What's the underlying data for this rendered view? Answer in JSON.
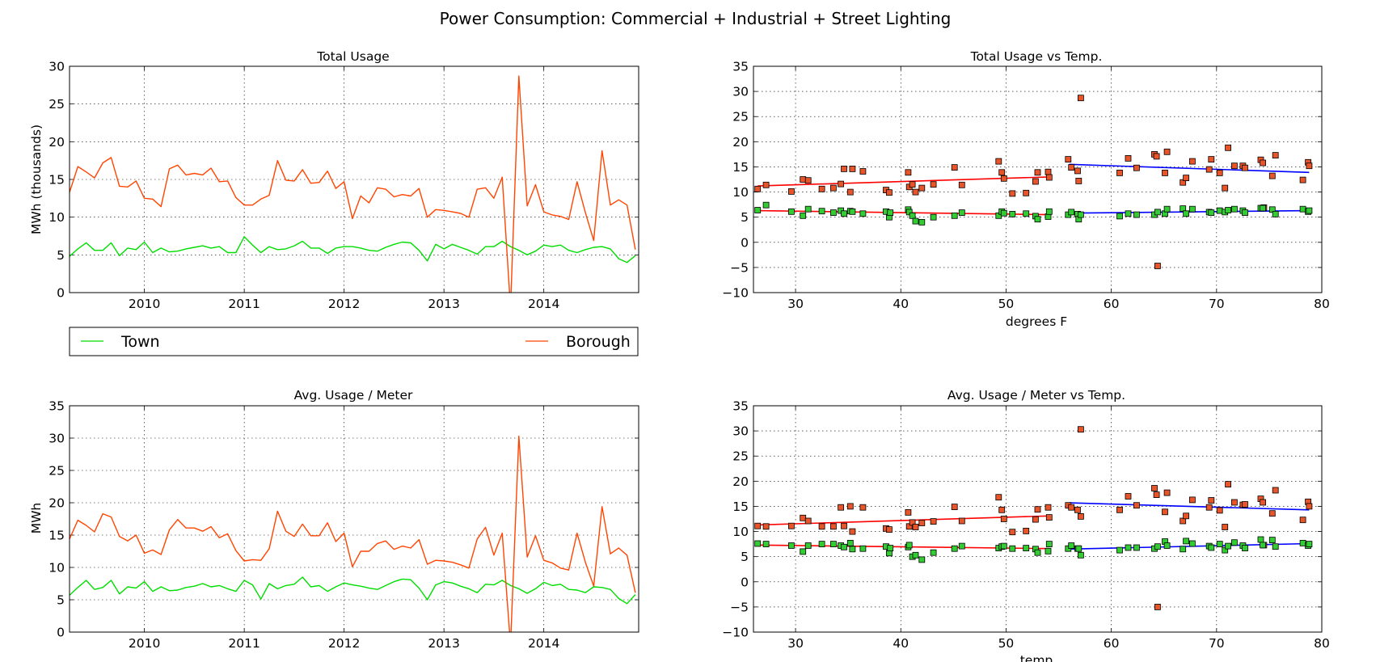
{
  "figure_title": "Power Consumption: Commercial + Industrial + Street Lighting",
  "colors": {
    "town": "#00dd00",
    "borough": "#ff4500",
    "town_marker": "#33cc33",
    "borough_marker": "#e8552a",
    "fit_low": "#ff0000",
    "fit_high": "#0000ff",
    "grid": "#000000"
  },
  "legend": {
    "town": "Town",
    "borough": "Borough",
    "placement": "below-top-left-panel"
  },
  "chart_data": [
    {
      "id": "ts1",
      "type": "line",
      "title": "Total Usage",
      "xlabel": "",
      "ylabel": "MWh (thousands)",
      "xlim": [
        2009.25,
        2014.95
      ],
      "ylim": [
        0,
        30
      ],
      "xticks": [
        2010,
        2011,
        2012,
        2013,
        2014
      ],
      "xtick_labels": [
        "2010",
        "2011",
        "2012",
        "2013",
        "2014"
      ],
      "yticks": [
        0,
        5,
        10,
        15,
        20,
        25,
        30
      ],
      "ytick_labels": [
        "0",
        "5",
        "10",
        "15",
        "20",
        "25",
        "30"
      ],
      "grid": true,
      "series": [
        {
          "name": "Town",
          "x_start": 2009.25,
          "x_step": 0.0833333,
          "values": [
            4.8,
            5.8,
            6.6,
            5.6,
            5.6,
            6.6,
            4.9,
            5.9,
            5.7,
            6.7,
            5.3,
            5.9,
            5.4,
            5.5,
            5.8,
            6.0,
            6.2,
            5.9,
            6.1,
            5.3,
            5.3,
            7.4,
            6.3,
            5.3,
            6.1,
            5.7,
            5.8,
            6.2,
            6.8,
            5.9,
            5.9,
            5.2,
            5.9,
            6.1,
            6.1,
            5.9,
            5.6,
            5.5,
            6.0,
            6.4,
            6.7,
            6.6,
            5.6,
            4.2,
            6.4,
            5.8,
            6.4,
            6.0,
            5.6,
            5.1,
            6.1,
            6.1,
            6.8,
            6.1,
            5.6,
            5.0,
            5.5,
            6.3,
            6.1,
            6.3,
            5.6,
            5.3,
            5.7,
            6.0,
            6.1,
            5.8,
            4.5,
            4.0,
            4.9
          ]
        },
        {
          "name": "Borough",
          "x_start": 2009.25,
          "x_step": 0.0833333,
          "values": [
            13.3,
            16.7,
            16.0,
            15.2,
            17.2,
            17.9,
            14.1,
            14.0,
            14.8,
            12.5,
            12.4,
            11.4,
            16.4,
            16.9,
            15.6,
            15.8,
            15.6,
            16.5,
            14.7,
            14.8,
            12.6,
            11.6,
            11.6,
            12.4,
            12.9,
            17.5,
            14.9,
            14.8,
            16.3,
            14.5,
            14.6,
            16.1,
            13.8,
            14.7,
            9.8,
            12.8,
            11.9,
            13.9,
            13.7,
            12.7,
            13.0,
            12.8,
            13.8,
            10.0,
            11.0,
            10.9,
            10.7,
            10.5,
            10.0,
            13.7,
            13.9,
            12.5,
            15.3,
            -2.0,
            28.7,
            11.5,
            14.3,
            10.7,
            10.3,
            10.1,
            9.7,
            14.7,
            10.6,
            6.9,
            18.8,
            11.6,
            12.3,
            11.6,
            5.7
          ]
        }
      ]
    },
    {
      "id": "ts2",
      "type": "line",
      "title": "Avg. Usage / Meter",
      "xlabel": "",
      "ylabel": "MWh",
      "xlim": [
        2009.25,
        2014.95
      ],
      "ylim": [
        0,
        35
      ],
      "xticks": [
        2010,
        2011,
        2012,
        2013,
        2014
      ],
      "xtick_labels": [
        "2010",
        "2011",
        "2012",
        "2013",
        "2014"
      ],
      "yticks": [
        0,
        5,
        10,
        15,
        20,
        25,
        30,
        35
      ],
      "ytick_labels": [
        "0",
        "5",
        "10",
        "15",
        "20",
        "25",
        "30",
        "35"
      ],
      "grid": true,
      "series": [
        {
          "name": "Town",
          "x_start": 2009.25,
          "x_step": 0.0833333,
          "values": [
            5.7,
            6.9,
            8.0,
            6.6,
            6.9,
            8.0,
            5.9,
            7.0,
            6.8,
            7.8,
            6.3,
            7.0,
            6.4,
            6.5,
            6.9,
            7.1,
            7.5,
            7.0,
            7.2,
            6.7,
            6.3,
            8.0,
            7.3,
            5.1,
            7.5,
            6.7,
            7.2,
            7.4,
            8.5,
            7.0,
            7.2,
            6.3,
            7.0,
            7.6,
            7.3,
            7.1,
            6.8,
            6.6,
            7.2,
            7.8,
            8.2,
            8.1,
            6.8,
            5.0,
            7.3,
            7.8,
            7.6,
            7.1,
            6.7,
            6.1,
            7.4,
            7.3,
            8.0,
            7.2,
            6.7,
            6.0,
            6.7,
            7.7,
            7.2,
            7.4,
            6.6,
            6.5,
            6.1,
            7.0,
            6.9,
            6.6,
            5.2,
            4.4,
            5.8
          ]
        },
        {
          "name": "Borough",
          "x_start": 2009.25,
          "x_step": 0.0833333,
          "values": [
            14.4,
            17.3,
            16.5,
            15.5,
            18.3,
            17.8,
            14.8,
            14.1,
            15.0,
            12.2,
            12.7,
            12.0,
            15.8,
            17.4,
            16.1,
            16.1,
            15.6,
            16.3,
            14.6,
            15.2,
            12.6,
            11.0,
            11.2,
            11.1,
            12.9,
            18.7,
            15.6,
            14.8,
            16.7,
            14.9,
            14.9,
            16.9,
            14.0,
            15.3,
            10.1,
            12.5,
            12.5,
            13.7,
            14.1,
            12.8,
            13.3,
            13.0,
            14.3,
            10.5,
            11.1,
            11.0,
            10.8,
            10.4,
            9.9,
            14.4,
            16.2,
            11.9,
            15.3,
            -2.0,
            30.3,
            11.6,
            14.9,
            11.1,
            10.7,
            9.9,
            9.6,
            15.3,
            10.8,
            7.1,
            19.4,
            12.1,
            13.0,
            11.9,
            6.1
          ]
        }
      ]
    },
    {
      "id": "sc1",
      "type": "scatter",
      "title": "Total Usage vs Temp.",
      "xlabel": "degrees F",
      "ylabel": "",
      "xlim": [
        26,
        80
      ],
      "ylim": [
        -10,
        35
      ],
      "xticks": [
        30,
        40,
        50,
        60,
        70,
        80
      ],
      "xtick_labels": [
        "30",
        "40",
        "50",
        "60",
        "70",
        "80"
      ],
      "yticks": [
        -10,
        -5,
        0,
        5,
        10,
        15,
        20,
        25,
        30,
        35
      ],
      "ytick_labels": [
        "−10",
        "−5",
        "0",
        "5",
        "10",
        "15",
        "20",
        "25",
        "30",
        "35"
      ],
      "grid": true,
      "series": [
        {
          "name": "Borough",
          "x": [
            26.4,
            27.2,
            29.6,
            30.7,
            31.2,
            32.5,
            33.6,
            34.3,
            34.6,
            35.2,
            35.4,
            36.4,
            38.6,
            38.9,
            40.7,
            40.8,
            41.1,
            41.4,
            42.0,
            43.1,
            45.1,
            45.8,
            49.3,
            49.6,
            49.8,
            50.6,
            51.9,
            52.8,
            53.0,
            54.0,
            54.1,
            55.9,
            56.2,
            56.8,
            56.9,
            57.1,
            60.8,
            61.6,
            62.4,
            64.1,
            64.3,
            64.4,
            65.1,
            65.3,
            66.8,
            67.1,
            67.7,
            69.3,
            69.5,
            70.3,
            70.8,
            71.1,
            71.7,
            72.5,
            72.7,
            74.2,
            74.4,
            74.5,
            75.3,
            75.6,
            78.2,
            78.7,
            78.8
          ],
          "y": [
            10.6,
            11.4,
            10.1,
            12.5,
            12.3,
            10.6,
            10.8,
            11.6,
            14.6,
            10.0,
            14.6,
            14.1,
            10.4,
            9.9,
            13.9,
            11.0,
            11.5,
            10.0,
            10.8,
            11.5,
            14.9,
            11.4,
            16.1,
            13.9,
            12.7,
            9.7,
            9.8,
            12.1,
            13.9,
            14.0,
            12.9,
            16.5,
            14.9,
            14.2,
            12.2,
            28.7,
            13.8,
            16.7,
            14.8,
            17.5,
            17.1,
            -4.7,
            13.8,
            18.0,
            11.9,
            12.8,
            16.1,
            14.5,
            16.5,
            13.8,
            10.8,
            18.8,
            15.2,
            15.2,
            14.8,
            16.4,
            15.8,
            6.9,
            13.2,
            17.3,
            12.4,
            15.9,
            15.2
          ]
        },
        {
          "name": "Town",
          "x": [
            26.4,
            27.2,
            29.6,
            30.7,
            31.2,
            32.5,
            33.6,
            34.3,
            34.6,
            35.2,
            35.4,
            36.4,
            38.6,
            38.9,
            39.0,
            40.7,
            40.8,
            41.1,
            41.4,
            42.0,
            43.1,
            45.1,
            45.8,
            49.3,
            49.6,
            49.8,
            50.6,
            51.9,
            52.8,
            53.0,
            54.0,
            54.1,
            55.9,
            56.2,
            56.8,
            56.9,
            57.1,
            60.8,
            61.6,
            62.4,
            64.1,
            64.4,
            65.1,
            65.3,
            66.8,
            67.1,
            67.7,
            69.3,
            69.5,
            70.3,
            70.8,
            71.1,
            71.7,
            72.5,
            72.7,
            74.2,
            74.4,
            75.3,
            75.6,
            78.2,
            78.7,
            78.8
          ],
          "y": [
            6.4,
            7.4,
            6.1,
            5.3,
            6.6,
            6.2,
            5.9,
            6.3,
            5.7,
            6.2,
            6.1,
            5.7,
            6.1,
            5.0,
            5.9,
            6.5,
            6.0,
            5.3,
            4.2,
            4.0,
            5.0,
            5.3,
            5.9,
            5.3,
            6.1,
            5.8,
            5.6,
            5.7,
            5.2,
            4.6,
            5.1,
            6.1,
            5.5,
            6.0,
            5.6,
            4.6,
            5.5,
            5.2,
            5.7,
            5.5,
            5.5,
            6.0,
            5.7,
            6.6,
            6.7,
            5.7,
            6.6,
            6.0,
            5.9,
            6.3,
            6.0,
            6.4,
            6.6,
            6.3,
            5.9,
            6.8,
            6.8,
            6.5,
            5.6,
            6.6,
            6.1,
            6.3
          ]
        }
      ],
      "fits": [
        {
          "series": "Borough",
          "range": [
            26.4,
            54.1
          ],
          "y_start": 11.2,
          "y_end": 13.0
        },
        {
          "series": "Borough",
          "range": [
            56,
            78.8
          ],
          "y_start": 15.5,
          "y_end": 13.9
        },
        {
          "series": "Town",
          "range": [
            26.4,
            54.1
          ],
          "y_start": 6.3,
          "y_end": 5.5
        },
        {
          "series": "Town",
          "range": [
            56,
            78.8
          ],
          "y_start": 5.8,
          "y_end": 6.3
        }
      ]
    },
    {
      "id": "sc2",
      "type": "scatter",
      "title": "Avg. Usage / Meter vs Temp.",
      "xlabel": "temp",
      "ylabel": "",
      "xlim": [
        26,
        80
      ],
      "ylim": [
        -10,
        35
      ],
      "xticks": [
        30,
        40,
        50,
        60,
        70,
        80
      ],
      "xtick_labels": [
        "30",
        "40",
        "50",
        "60",
        "70",
        "80"
      ],
      "yticks": [
        -10,
        -5,
        0,
        5,
        10,
        15,
        20,
        25,
        30,
        35
      ],
      "ytick_labels": [
        "−10",
        "−5",
        "0",
        "5",
        "10",
        "15",
        "20",
        "25",
        "30",
        "35"
      ],
      "grid": true,
      "series": [
        {
          "name": "Borough",
          "x": [
            26.4,
            27.2,
            29.6,
            30.7,
            31.2,
            32.5,
            33.6,
            34.3,
            34.6,
            35.2,
            35.4,
            36.4,
            38.6,
            38.9,
            40.7,
            40.8,
            41.1,
            41.4,
            42.0,
            43.1,
            45.1,
            45.8,
            49.3,
            49.6,
            49.8,
            50.6,
            51.9,
            52.8,
            53.0,
            54.0,
            54.1,
            55.9,
            56.2,
            56.8,
            57.1,
            57.1,
            60.8,
            61.6,
            62.4,
            64.1,
            64.3,
            64.4,
            65.1,
            65.3,
            66.8,
            67.1,
            67.7,
            69.3,
            69.5,
            70.3,
            70.8,
            71.1,
            71.7,
            72.5,
            72.7,
            74.2,
            74.4,
            74.5,
            75.3,
            75.6,
            78.2,
            78.7,
            78.8
          ],
          "y": [
            11.1,
            11.0,
            11.1,
            12.7,
            12.1,
            11.0,
            11.0,
            14.8,
            11.1,
            15.0,
            10.0,
            14.8,
            10.6,
            10.4,
            13.8,
            11.0,
            11.8,
            10.9,
            11.7,
            12.0,
            14.9,
            12.1,
            16.8,
            14.3,
            12.5,
            9.9,
            10.1,
            12.4,
            14.4,
            14.8,
            12.8,
            15.2,
            14.8,
            14.3,
            13.0,
            30.3,
            14.3,
            17.0,
            15.2,
            18.6,
            17.3,
            -5.0,
            13.9,
            17.7,
            12.1,
            13.1,
            16.3,
            14.8,
            16.2,
            14.2,
            10.9,
            19.4,
            15.8,
            15.3,
            15.4,
            16.5,
            15.8,
            7.3,
            13.6,
            18.2,
            12.3,
            15.9,
            15.0
          ]
        },
        {
          "name": "Town",
          "x": [
            26.4,
            27.2,
            29.6,
            30.7,
            31.2,
            32.5,
            33.6,
            34.3,
            34.6,
            35.2,
            35.4,
            36.4,
            38.6,
            38.9,
            39.0,
            40.7,
            40.8,
            41.1,
            41.4,
            42.0,
            43.1,
            45.1,
            45.8,
            49.3,
            49.6,
            49.8,
            50.6,
            51.9,
            52.8,
            53.0,
            54.0,
            54.1,
            55.9,
            56.2,
            56.8,
            56.9,
            57.1,
            60.8,
            61.6,
            62.4,
            64.1,
            64.4,
            65.1,
            65.3,
            66.8,
            67.1,
            67.7,
            69.3,
            69.5,
            70.3,
            70.8,
            71.1,
            71.7,
            72.5,
            72.7,
            74.2,
            74.4,
            75.3,
            75.6,
            78.2,
            78.7,
            78.8
          ],
          "y": [
            7.6,
            7.5,
            7.2,
            6.0,
            7.2,
            7.5,
            7.5,
            7.2,
            6.9,
            7.7,
            6.5,
            6.6,
            7.0,
            5.7,
            6.7,
            6.9,
            7.3,
            5.0,
            5.3,
            4.4,
            5.8,
            6.6,
            7.1,
            6.7,
            7.0,
            7.1,
            6.6,
            6.7,
            6.5,
            5.8,
            6.1,
            7.5,
            6.6,
            7.2,
            6.6,
            6.6,
            5.3,
            6.3,
            6.8,
            6.8,
            6.6,
            7.0,
            8.0,
            7.2,
            6.5,
            8.1,
            7.6,
            7.1,
            6.8,
            7.5,
            6.3,
            7.1,
            7.8,
            7.2,
            6.7,
            8.4,
            7.3,
            8.3,
            7.0,
            7.7,
            7.2,
            7.5
          ]
        }
      ],
      "fits": [
        {
          "series": "Borough",
          "range": [
            26.4,
            54.1
          ],
          "y_start": 11.3,
          "y_end": 13.1
        },
        {
          "series": "Borough",
          "range": [
            56,
            78.8
          ],
          "y_start": 15.7,
          "y_end": 14.3
        },
        {
          "series": "Town",
          "range": [
            26.4,
            54.1
          ],
          "y_start": 7.3,
          "y_end": 6.6
        },
        {
          "series": "Town",
          "range": [
            56,
            78.8
          ],
          "y_start": 6.5,
          "y_end": 7.6
        }
      ]
    }
  ]
}
